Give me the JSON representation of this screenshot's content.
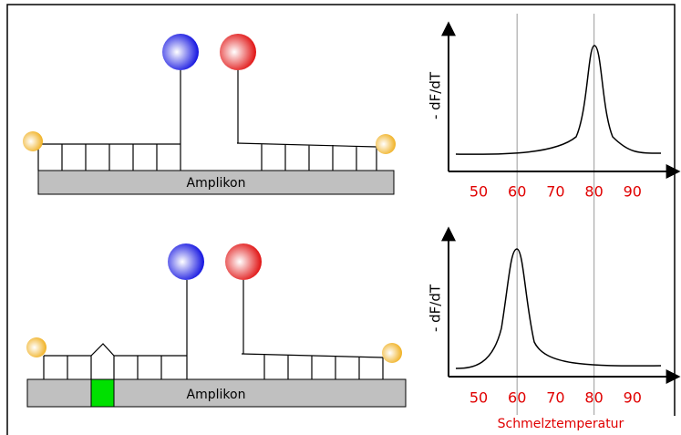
{
  "panels": [
    {
      "amplicon_label": "Amplikon",
      "chart": {
        "y_label": "- dF/dT",
        "x_ticks": [
          50,
          60,
          70,
          80,
          90
        ]
      }
    },
    {
      "amplicon_label": "Amplikon",
      "chart": {
        "y_label": "- dF/dT",
        "x_ticks": [
          50,
          60,
          70,
          80,
          90
        ]
      }
    }
  ],
  "x_label": "Schmelztemperatur"
}
